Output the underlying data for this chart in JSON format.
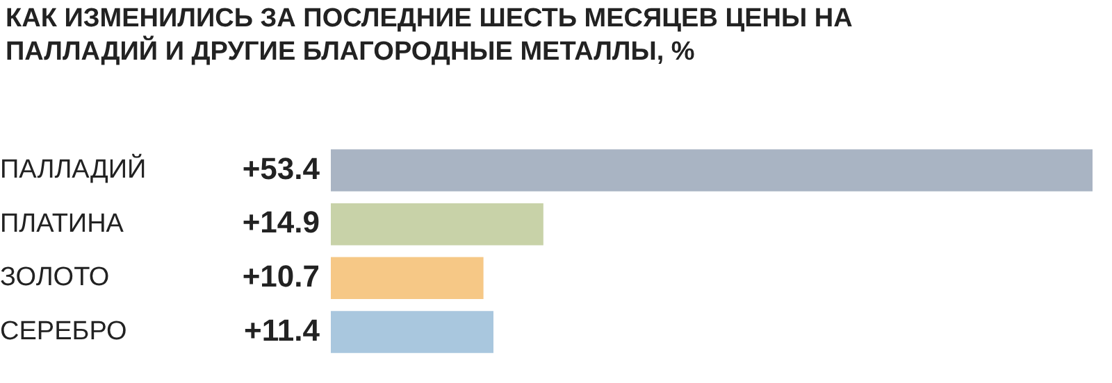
{
  "chart_data": {
    "type": "bar",
    "orientation": "horizontal",
    "title": "КАК ИЗМЕНИЛИСЬ ЗА ПОСЛЕДНИЕ ШЕСТЬ МЕСЯЦЕВ ЦЕНЫ НА ПАЛЛАДИЙ И ДРУГИЕ БЛАГОРОДНЫЕ МЕТАЛЛЫ, %",
    "categories": [
      "ПАЛЛАДИЙ",
      "ПЛАТИНА",
      "ЗОЛОТО",
      "СЕРЕБРО"
    ],
    "values": [
      53.4,
      14.9,
      10.7,
      11.4
    ],
    "colors": [
      "#a9b4c3",
      "#c8d2a8",
      "#f6c886",
      "#a9c7de"
    ],
    "value_labels": [
      "+53.4",
      "+14.9",
      "+10.7",
      "+11.4"
    ],
    "tick_labels": "y",
    "grid": false,
    "legend": false
  }
}
